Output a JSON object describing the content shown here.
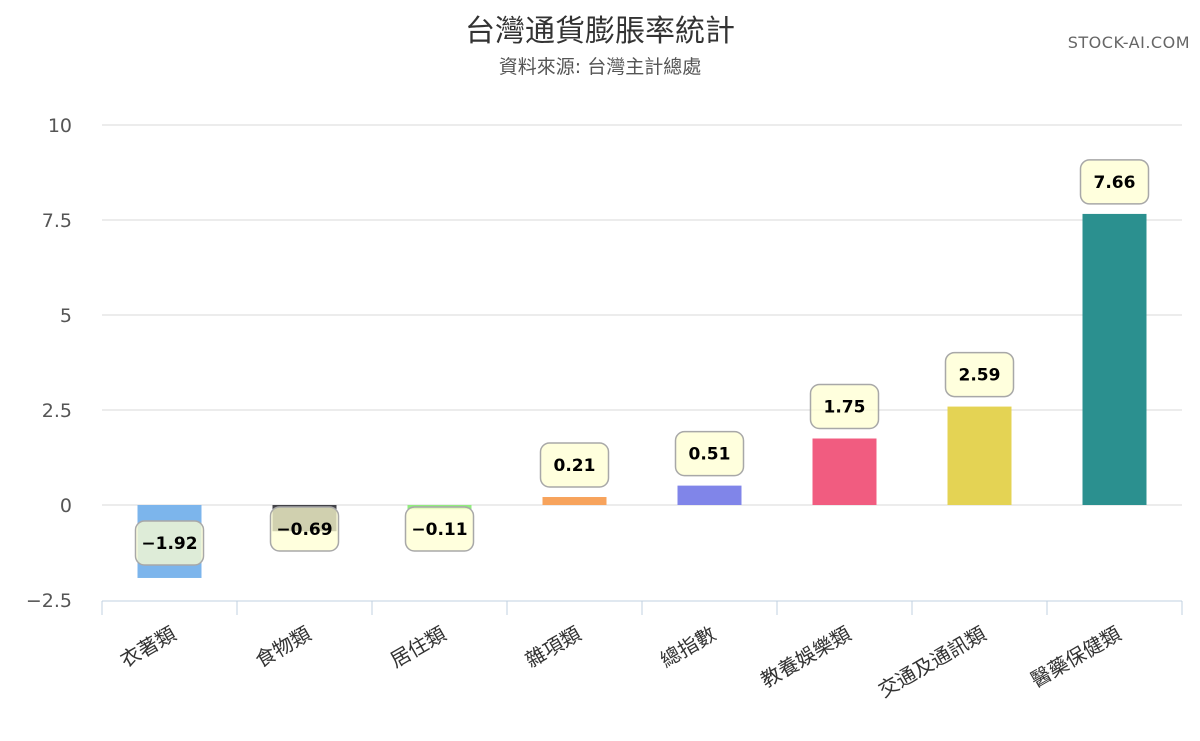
{
  "chart_data": {
    "type": "bar",
    "title": "台灣通貨膨脹率統計",
    "subtitle": "資料來源: 台灣主計總處",
    "credit": "STOCK-AI.COM",
    "categories": [
      "衣著類",
      "食物類",
      "居住類",
      "雜項類",
      "總指數",
      "教養娛樂類",
      "交通及通訊類",
      "醫藥保健類"
    ],
    "values": [
      -1.92,
      -0.69,
      -0.11,
      0.21,
      0.51,
      1.75,
      2.59,
      7.66
    ],
    "value_labels": [
      "−1.92",
      "−0.69",
      "−0.11",
      "0.21",
      "0.51",
      "1.75",
      "2.59",
      "7.66"
    ],
    "colors": [
      "#7cb5ec",
      "#434348",
      "#90ed7d",
      "#f7a35c",
      "#8085e9",
      "#f15c80",
      "#e4d354",
      "#2b908f"
    ],
    "ylim": [
      -2.5,
      10
    ],
    "yticks": [
      10,
      7.5,
      5,
      2.5,
      0,
      -2.5
    ],
    "ytick_labels": [
      "10",
      "7.5",
      "5",
      "2.5",
      "0",
      "−2.5"
    ],
    "grid": true,
    "legend": "none",
    "xlabel": "",
    "ylabel": ""
  }
}
